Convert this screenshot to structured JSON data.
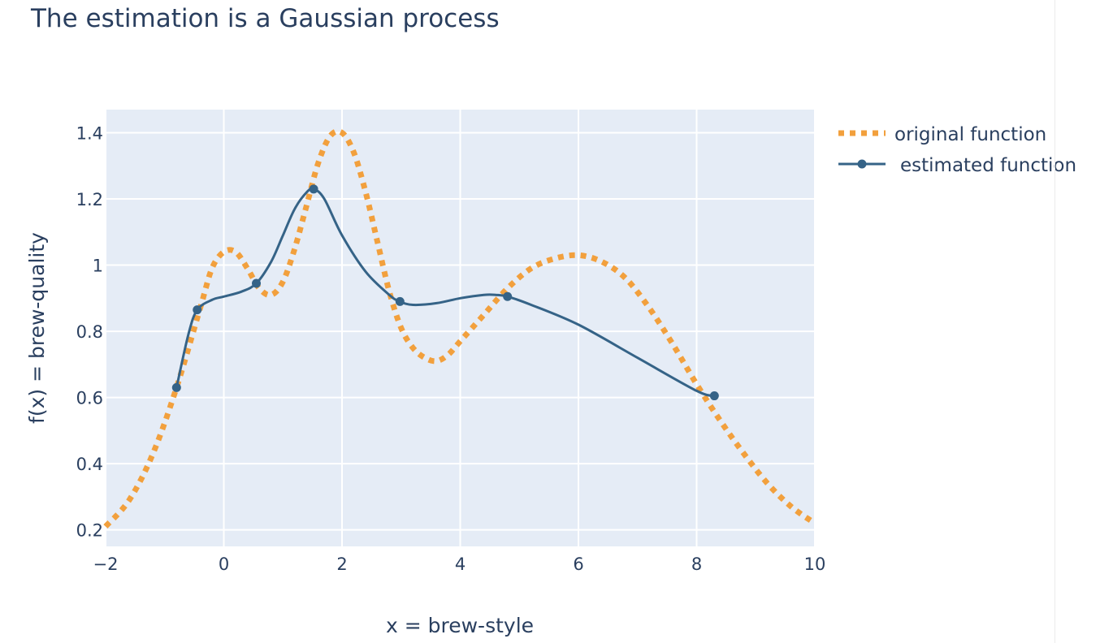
{
  "chart_data": {
    "type": "line",
    "title": "The estimation is a Gaussian process",
    "xlabel": "x = brew-style",
    "ylabel": "f(x) = brew-quality",
    "xlim": [
      -2,
      10
    ],
    "ylim": [
      0.15,
      1.47
    ],
    "xticks": [
      -2,
      0,
      2,
      4,
      6,
      8,
      10
    ],
    "xtick_labels": [
      "−2",
      "0",
      "2",
      "4",
      "6",
      "8",
      "10"
    ],
    "yticks": [
      0.2,
      0.4,
      0.6,
      0.8,
      1.0,
      1.2,
      1.4
    ],
    "ytick_labels": [
      "0.2",
      "0.4",
      "0.6",
      "0.8",
      "1",
      "1.2",
      "1.4"
    ],
    "grid": true,
    "legend_placement": "top-right-outside",
    "colors": {
      "plot_bg": "#e5ecf6",
      "grid": "#ffffff",
      "text": "#2a3f5f",
      "original": "#f2a03d",
      "estimated": "#356387"
    },
    "series": [
      {
        "name": "original function",
        "style": "dotted",
        "x": [
          -2.0,
          -1.6,
          -1.2,
          -0.8,
          -0.4,
          -0.2,
          0.0,
          0.2,
          0.4,
          0.6,
          0.8,
          1.0,
          1.2,
          1.4,
          1.6,
          1.8,
          2.0,
          2.2,
          2.4,
          2.6,
          2.8,
          3.0,
          3.2,
          3.4,
          3.6,
          3.8,
          4.0,
          4.4,
          4.8,
          5.2,
          5.6,
          6.0,
          6.4,
          6.8,
          7.2,
          7.6,
          8.0,
          8.4,
          8.8,
          9.2,
          9.6,
          10.0
        ],
        "y": [
          0.21,
          0.29,
          0.43,
          0.63,
          0.87,
          0.99,
          1.04,
          1.04,
          0.99,
          0.93,
          0.91,
          0.95,
          1.05,
          1.18,
          1.31,
          1.39,
          1.4,
          1.34,
          1.22,
          1.07,
          0.92,
          0.81,
          0.75,
          0.72,
          0.71,
          0.73,
          0.77,
          0.85,
          0.93,
          0.99,
          1.02,
          1.03,
          1.01,
          0.96,
          0.87,
          0.76,
          0.64,
          0.53,
          0.43,
          0.34,
          0.27,
          0.22
        ]
      },
      {
        "name": "estimated function",
        "style": "solid",
        "x": [
          -0.8,
          -0.6,
          -0.45,
          -0.2,
          0.0,
          0.3,
          0.55,
          0.8,
          1.0,
          1.2,
          1.4,
          1.52,
          1.7,
          2.0,
          2.4,
          2.8,
          2.98,
          3.2,
          3.6,
          4.0,
          4.4,
          4.6,
          4.8,
          5.2,
          6.0,
          7.0,
          8.0,
          8.3
        ],
        "y": [
          0.63,
          0.79,
          0.865,
          0.895,
          0.905,
          0.92,
          0.945,
          1.01,
          1.09,
          1.17,
          1.22,
          1.23,
          1.2,
          1.09,
          0.98,
          0.91,
          0.89,
          0.88,
          0.885,
          0.9,
          0.91,
          0.91,
          0.905,
          0.88,
          0.82,
          0.72,
          0.62,
          0.605
        ],
        "markers": {
          "x": [
            -0.8,
            -0.45,
            0.55,
            1.52,
            2.98,
            4.8,
            8.3
          ],
          "y": [
            0.63,
            0.865,
            0.945,
            1.23,
            0.89,
            0.905,
            0.605
          ]
        }
      }
    ]
  }
}
